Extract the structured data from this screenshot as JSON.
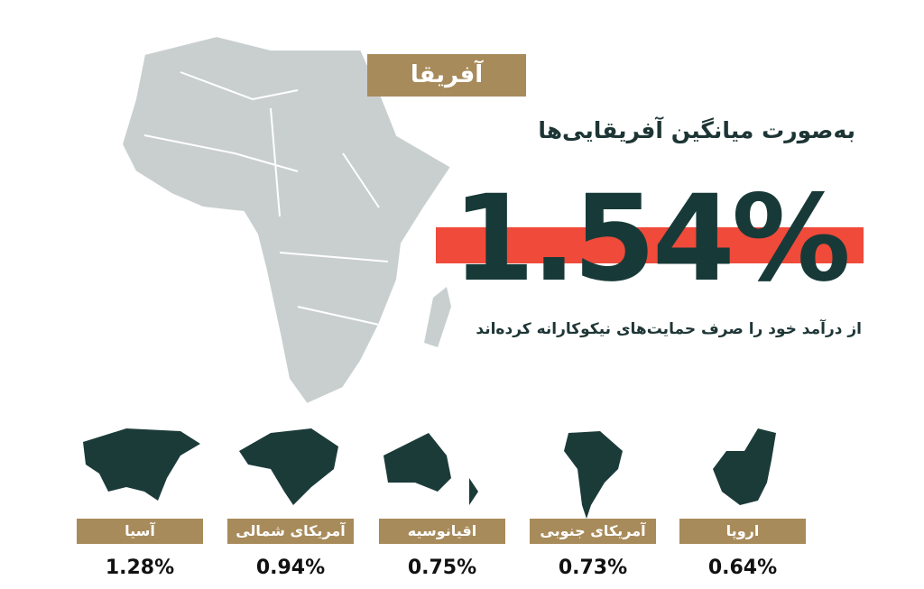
{
  "header": {
    "region": "آفریقا",
    "lead": "به‌صورت میانگین آفریقایی‌ها",
    "value": "1.54%",
    "caption": "از درآمد خود را صرف حمایت‌های نیکوکارانه کرده‌اند"
  },
  "regions": [
    {
      "name": "آسیا",
      "value": "1.28%"
    },
    {
      "name": "آمریکای شمالی",
      "value": "0.94%"
    },
    {
      "name": "اقیانوسیه",
      "value": "0.75%"
    },
    {
      "name": "آمریکای جنوبی",
      "value": "0.73%"
    },
    {
      "name": "اروپا",
      "value": "0.64%"
    }
  ]
}
